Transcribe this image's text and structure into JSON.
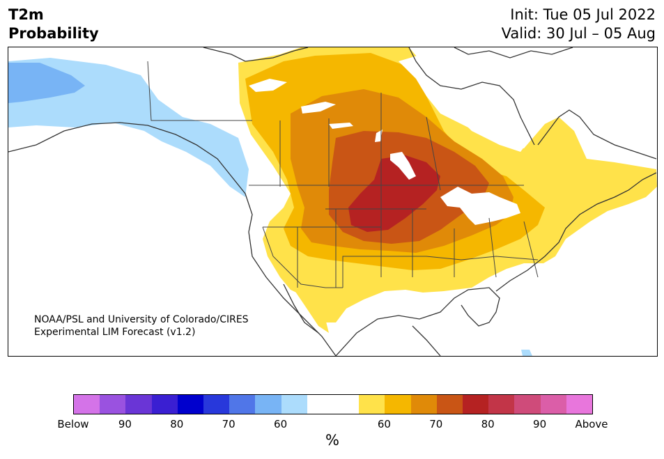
{
  "header": {
    "title_line1": "T2m",
    "title_line2": "Probability",
    "init": "Init: Tue 05 Jul 2022",
    "valid": "Valid: 30 Jul – 05 Aug"
  },
  "map": {
    "credit_line1": "NOAA/PSL and University of Colorado/CIRES",
    "credit_line2": "Experimental LIM Forecast (v1.2)"
  },
  "colorbar": {
    "unit": "%",
    "colors": [
      "#d473e8",
      "#9a52e0",
      "#6a35d6",
      "#3a1fd2",
      "#0000cd",
      "#2838db",
      "#5076e8",
      "#78b4f5",
      "#acdcfc",
      "#ffffff",
      "#ffffff",
      "#ffe24a",
      "#f5b700",
      "#e08a08",
      "#c95515",
      "#b52222",
      "#c23548",
      "#cf4b7a",
      "#db5ea8",
      "#e876dc"
    ],
    "labels": [
      "Below",
      "90",
      "80",
      "70",
      "60",
      "60",
      "70",
      "80",
      "90",
      "Above"
    ]
  },
  "colors": {
    "cold_60": "#acdcfc",
    "cold_70": "#78b4f5",
    "warm_60": "#ffe24a",
    "warm_65": "#f5b700",
    "warm_70": "#e08a08",
    "warm_75": "#c95515",
    "warm_80": "#b52222"
  }
}
